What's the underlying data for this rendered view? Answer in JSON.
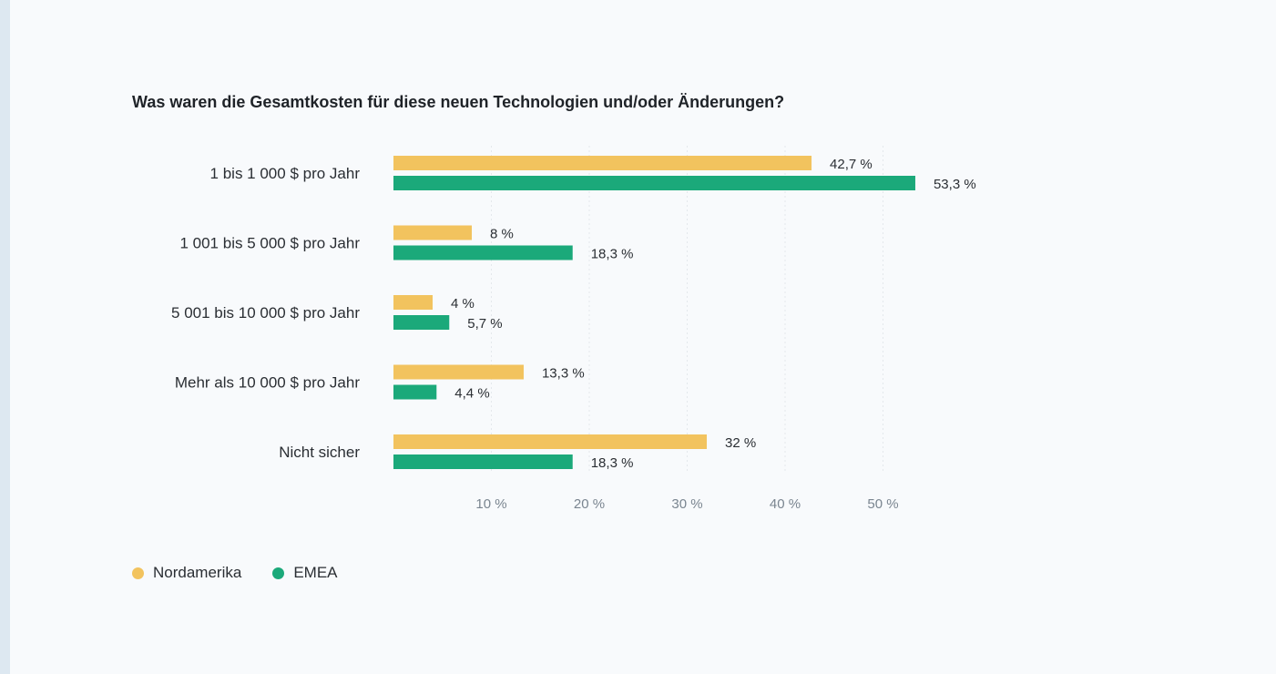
{
  "chart_data": {
    "type": "bar",
    "orientation": "horizontal",
    "title": "Was waren die Gesamtkosten für diese neuen Technologien und/oder Änderungen?",
    "categories": [
      "1 bis 1 000 $ pro Jahr",
      "1 001 bis 5 000 $ pro Jahr",
      "5 001 bis 10 000 $ pro Jahr",
      "Mehr als 10 000 $ pro Jahr",
      "Nicht sicher"
    ],
    "series": [
      {
        "name": "Nordamerika",
        "color": "#f2c35e",
        "values": [
          42.7,
          8,
          4,
          13.3,
          32
        ],
        "labels": [
          "42,7 %",
          "8 %",
          "4 %",
          "13,3 %",
          "32 %"
        ]
      },
      {
        "name": "EMEA",
        "color": "#1ba97a",
        "values": [
          53.3,
          18.3,
          5.7,
          4.4,
          18.3
        ],
        "labels": [
          "53,3 %",
          "18,3 %",
          "5,7 %",
          "4,4 %",
          "18,3 %"
        ]
      }
    ],
    "xticks": [
      10,
      20,
      30,
      40,
      50
    ],
    "xtick_labels": [
      "10 %",
      "20 %",
      "30 %",
      "40 %",
      "50 %"
    ],
    "xlim": [
      0,
      55
    ],
    "grid": true,
    "legend_position": "bottom-left",
    "xlabel": "",
    "ylabel": ""
  },
  "legend": [
    {
      "label": "Nordamerika",
      "color": "#f2c35e"
    },
    {
      "label": "EMEA",
      "color": "#1ba97a"
    }
  ]
}
